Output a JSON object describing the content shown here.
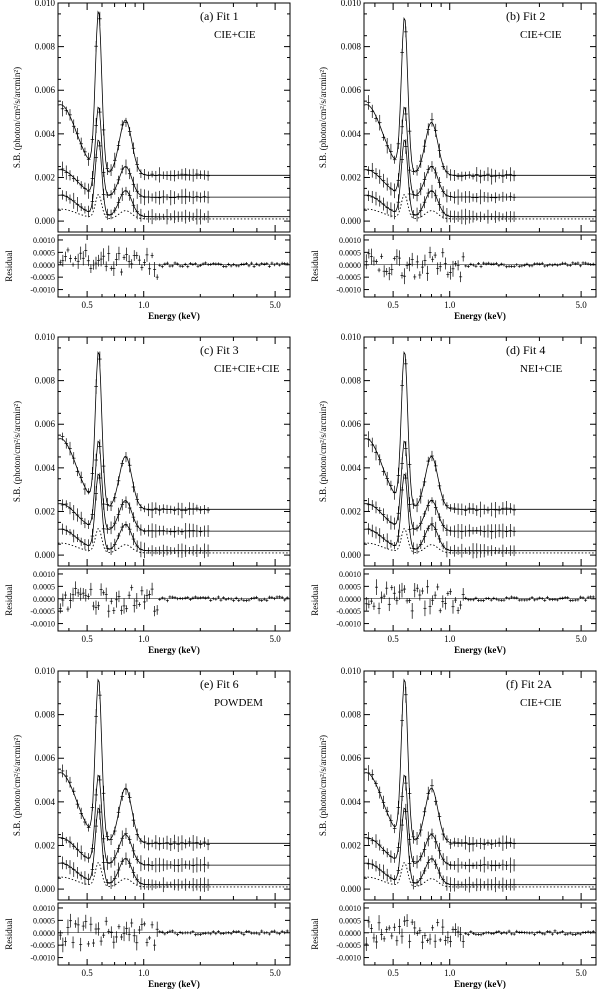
{
  "figure": {
    "ylabel_main": "S.B. (photon/cm²/s/arcmin²)",
    "ylabel_resid": "Residual",
    "xlabel": "Energy (keV)"
  },
  "chart_data": [
    {
      "type": "line",
      "panel_label": "(a) Fit 1",
      "model_label": "CIE+CIE",
      "x_scale": "log",
      "xlabel": "Energy (keV)",
      "ylabel": "S.B. (photon/cm²/s/arcmin²)",
      "xlim": [
        0.35,
        6.0
      ],
      "ylim": [
        -0.0005,
        0.01
      ],
      "yticks": [
        0.0,
        0.002,
        0.004,
        0.006,
        0.008,
        0.01
      ],
      "ytick_labels": [
        "0.000",
        "0.002",
        "0.004",
        "0.006",
        "0.008",
        "0.010"
      ],
      "xticks": [
        0.5,
        1.0,
        5.0
      ],
      "xtick_labels": [
        "0.5",
        "1.0",
        "5.0"
      ],
      "series": [
        {
          "name": "spectrum (offset +0.004)",
          "peak": 0.0095,
          "continuum": 0.0021,
          "low_e": 0.0057
        },
        {
          "name": "spectrum (offset +0.001)",
          "peak": 0.0052,
          "continuum": 0.0011,
          "low_e": 0.0025
        },
        {
          "name": "spectrum",
          "peak": 0.0037,
          "continuum": 0.0002,
          "low_e": 0.0013
        },
        {
          "name": "model component (dotted)",
          "peak": 0.0012,
          "continuum": 0.0001,
          "low_e": 0.0006
        }
      ],
      "residual": {
        "ylim": [
          -0.0013,
          0.0012
        ],
        "yticks": [
          -0.001,
          -0.0005,
          0.0,
          0.0005,
          0.001
        ],
        "ytick_labels": [
          "-0.0010",
          "-0.0005",
          "0.0000",
          "0.0005",
          "0.0010"
        ],
        "ylabel": "Residual"
      }
    },
    {
      "type": "line",
      "panel_label": "(b) Fit 2",
      "model_label": "CIE+CIE",
      "x_scale": "log",
      "xlabel": "Energy (keV)",
      "ylabel": "S.B. (photon/cm²/s/arcmin²)",
      "xlim": [
        0.35,
        6.0
      ],
      "ylim": [
        -0.0005,
        0.01
      ],
      "yticks": [
        0.0,
        0.002,
        0.004,
        0.006,
        0.008,
        0.01
      ],
      "ytick_labels": [
        "0.000",
        "0.002",
        "0.004",
        "0.006",
        "0.008",
        "0.010"
      ],
      "xticks": [
        0.5,
        1.0,
        5.0
      ],
      "xtick_labels": [
        "0.5",
        "1.0",
        "5.0"
      ],
      "series": [
        {
          "name": "spectrum (offset +0.004)",
          "peak": 0.0092,
          "continuum": 0.0021,
          "low_e": 0.0057
        },
        {
          "name": "spectrum (offset +0.001)",
          "peak": 0.0052,
          "continuum": 0.0011,
          "low_e": 0.0025
        },
        {
          "name": "spectrum",
          "peak": 0.0037,
          "continuum": 0.0002,
          "low_e": 0.0013
        },
        {
          "name": "model component (dotted)",
          "peak": 0.0012,
          "continuum": 0.0001,
          "low_e": 0.0006
        }
      ],
      "residual": {
        "ylim": [
          -0.0013,
          0.0012
        ],
        "yticks": [
          -0.001,
          -0.0005,
          0.0,
          0.0005,
          0.001
        ],
        "ytick_labels": [
          "-0.0010",
          "-0.0005",
          "0.0000",
          "0.0005",
          "0.0010"
        ],
        "ylabel": "Residual"
      }
    },
    {
      "type": "line",
      "panel_label": "(c) Fit 3",
      "model_label": "CIE+CIE+CIE",
      "x_scale": "log",
      "xlabel": "Energy (keV)",
      "ylabel": "S.B. (photon/cm²/s/arcmin²)",
      "xlim": [
        0.35,
        6.0
      ],
      "ylim": [
        -0.0005,
        0.01
      ],
      "yticks": [
        0.0,
        0.002,
        0.004,
        0.006,
        0.008,
        0.01
      ],
      "ytick_labels": [
        "0.000",
        "0.002",
        "0.004",
        "0.006",
        "0.008",
        "0.010"
      ],
      "xticks": [
        0.5,
        1.0,
        5.0
      ],
      "xtick_labels": [
        "0.5",
        "1.0",
        "5.0"
      ],
      "series": [
        {
          "name": "spectrum (offset +0.004)",
          "peak": 0.0092,
          "continuum": 0.0021,
          "low_e": 0.0057
        },
        {
          "name": "spectrum (offset +0.001)",
          "peak": 0.0052,
          "continuum": 0.0011,
          "low_e": 0.0025
        },
        {
          "name": "spectrum",
          "peak": 0.0037,
          "continuum": 0.0002,
          "low_e": 0.0013
        },
        {
          "name": "model component (dotted)",
          "peak": 0.0012,
          "continuum": 0.0001,
          "low_e": 0.0006
        }
      ],
      "residual": {
        "ylim": [
          -0.0013,
          0.0012
        ],
        "yticks": [
          -0.001,
          -0.0005,
          0.0,
          0.0005,
          0.001
        ],
        "ytick_labels": [
          "-0.0010",
          "-0.0005",
          "0.0000",
          "0.0005",
          "0.0010"
        ],
        "ylabel": "Residual"
      }
    },
    {
      "type": "line",
      "panel_label": "(d) Fit 4",
      "model_label": "NEI+CIE",
      "x_scale": "log",
      "xlabel": "Energy (keV)",
      "ylabel": "S.B. (photon/cm²/s/arcmin²)",
      "xlim": [
        0.35,
        6.0
      ],
      "ylim": [
        -0.0005,
        0.01
      ],
      "yticks": [
        0.0,
        0.002,
        0.004,
        0.006,
        0.008,
        0.01
      ],
      "ytick_labels": [
        "0.000",
        "0.002",
        "0.004",
        "0.006",
        "0.008",
        "0.010"
      ],
      "xticks": [
        0.5,
        1.0,
        5.0
      ],
      "xtick_labels": [
        "0.5",
        "1.0",
        "5.0"
      ],
      "series": [
        {
          "name": "spectrum (offset +0.004)",
          "peak": 0.0092,
          "continuum": 0.0021,
          "low_e": 0.0057
        },
        {
          "name": "spectrum (offset +0.001)",
          "peak": 0.0052,
          "continuum": 0.0011,
          "low_e": 0.0025
        },
        {
          "name": "spectrum",
          "peak": 0.0037,
          "continuum": 0.0002,
          "low_e": 0.0013
        },
        {
          "name": "model component (dotted)",
          "peak": 0.0012,
          "continuum": 0.0001,
          "low_e": 0.0006
        }
      ],
      "residual": {
        "ylim": [
          -0.0013,
          0.0012
        ],
        "yticks": [
          -0.001,
          -0.0005,
          0.0,
          0.0005,
          0.001
        ],
        "ytick_labels": [
          "-0.0010",
          "-0.0005",
          "0.0000",
          "0.0005",
          "0.0010"
        ],
        "ylabel": "Residual"
      }
    },
    {
      "type": "line",
      "panel_label": "(e) Fit 6",
      "model_label": "POWDEM",
      "x_scale": "log",
      "xlabel": "Energy (keV)",
      "ylabel": "S.B. (photon/cm²/s/arcmin²)",
      "xlim": [
        0.35,
        6.0
      ],
      "ylim": [
        -0.0005,
        0.01
      ],
      "yticks": [
        0.0,
        0.002,
        0.004,
        0.006,
        0.008,
        0.01
      ],
      "ytick_labels": [
        "0.000",
        "0.002",
        "0.004",
        "0.006",
        "0.008",
        "0.010"
      ],
      "xticks": [
        0.5,
        1.0,
        5.0
      ],
      "xtick_labels": [
        "0.5",
        "1.0",
        "5.0"
      ],
      "series": [
        {
          "name": "spectrum (offset +0.004)",
          "peak": 0.0095,
          "continuum": 0.0021,
          "low_e": 0.0057
        },
        {
          "name": "spectrum (offset +0.001)",
          "peak": 0.0052,
          "continuum": 0.0011,
          "low_e": 0.0025
        },
        {
          "name": "spectrum",
          "peak": 0.0037,
          "continuum": 0.0002,
          "low_e": 0.0013
        },
        {
          "name": "model component (dotted)",
          "peak": 0.0012,
          "continuum": 0.0001,
          "low_e": 0.0006
        }
      ],
      "residual": {
        "ylim": [
          -0.0013,
          0.0012
        ],
        "yticks": [
          -0.001,
          -0.0005,
          0.0,
          0.0005,
          0.001
        ],
        "ytick_labels": [
          "-0.0010",
          "-0.0005",
          "0.0000",
          "0.0005",
          "0.0010"
        ],
        "ylabel": "Residual"
      }
    },
    {
      "type": "line",
      "panel_label": "(f) Fit 2A",
      "model_label": "CIE+CIE",
      "x_scale": "log",
      "xlabel": "Energy (keV)",
      "ylabel": "S.B. (photon/cm²/s/arcmin²)",
      "xlim": [
        0.35,
        6.0
      ],
      "ylim": [
        -0.0005,
        0.01
      ],
      "yticks": [
        0.0,
        0.002,
        0.004,
        0.006,
        0.008,
        0.01
      ],
      "ytick_labels": [
        "0.000",
        "0.002",
        "0.004",
        "0.006",
        "0.008",
        "0.010"
      ],
      "xticks": [
        0.5,
        1.0,
        5.0
      ],
      "xtick_labels": [
        "0.5",
        "1.0",
        "5.0"
      ],
      "series": [
        {
          "name": "spectrum (offset +0.004)",
          "peak": 0.0095,
          "continuum": 0.0021,
          "low_e": 0.0057
        },
        {
          "name": "spectrum (offset +0.001)",
          "peak": 0.0052,
          "continuum": 0.0011,
          "low_e": 0.0025
        },
        {
          "name": "spectrum",
          "peak": 0.0037,
          "continuum": 0.0002,
          "low_e": 0.0013
        },
        {
          "name": "model component (dotted)",
          "peak": 0.0012,
          "continuum": 0.0001,
          "low_e": 0.0006
        }
      ],
      "residual": {
        "ylim": [
          -0.0013,
          0.0012
        ],
        "yticks": [
          -0.001,
          -0.0005,
          0.0,
          0.0005,
          0.001
        ],
        "ytick_labels": [
          "-0.0010",
          "-0.0005",
          "0.0000",
          "0.0005",
          "0.0010"
        ],
        "ylabel": "Residual"
      }
    }
  ]
}
